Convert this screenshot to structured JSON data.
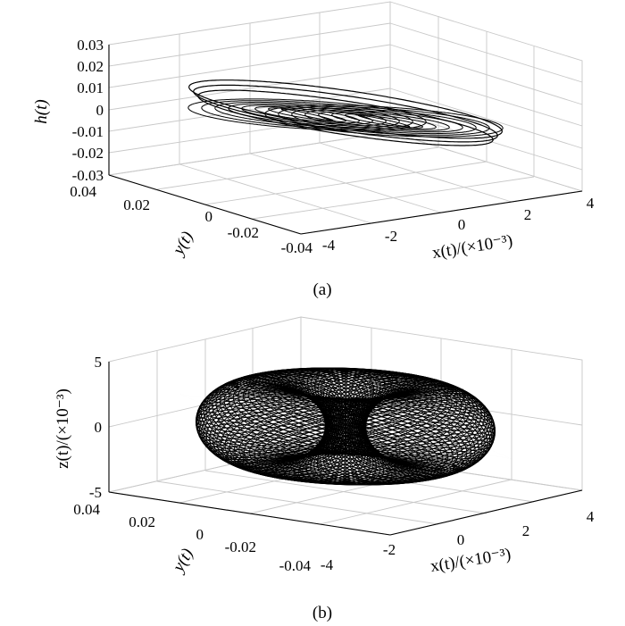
{
  "colors": {
    "trajectory": "#000000",
    "grid": "#c8c8c8",
    "background": "#ffffff"
  },
  "chart_data": [
    {
      "type": "line3d",
      "caption": "(a)",
      "xlabel": "x(t)/(×10⁻³)",
      "ylabel": "y(t)",
      "zlabel": "h(t)",
      "xlim": [
        -4,
        4
      ],
      "ylim": [
        -0.04,
        0.04
      ],
      "zlim": [
        -0.03,
        0.03
      ],
      "xticks": [
        "-4",
        "-2",
        "0",
        "2",
        "4"
      ],
      "yticks": [
        "0.04",
        "0.02",
        "0",
        "-0.02",
        "-0.04"
      ],
      "zticks": [
        "0.03",
        "0.02",
        "0.01",
        "0",
        "-0.01",
        "-0.02",
        "-0.03"
      ],
      "grid": true,
      "series": [
        {
          "x": [
            4.0,
            3.3,
            0.8,
            -1.6,
            -3.4,
            -4.0,
            -3.0,
            -0.5,
            2.0,
            3.6,
            4.0
          ],
          "y": [
            0.0,
            0.012,
            0.028,
            0.035,
            0.022,
            0.0,
            -0.02,
            -0.034,
            -0.03,
            -0.015,
            0.0
          ],
          "z": [
            0.0,
            0.006,
            0.012,
            0.014,
            0.009,
            0.0,
            -0.008,
            -0.014,
            -0.012,
            -0.006,
            0.0
          ]
        }
      ]
    },
    {
      "type": "line3d",
      "caption": "(b)",
      "xlabel": "x(t)/(×10⁻³)",
      "ylabel": "y(t)",
      "zlabel": "z(t)/(×10⁻³)",
      "xlim": [
        -4,
        4
      ],
      "ylim": [
        -0.04,
        0.04
      ],
      "zlim": [
        -5,
        5
      ],
      "xticks": [
        "-4",
        "-2",
        "0",
        "2",
        "4"
      ],
      "yticks": [
        "0.04",
        "0.02",
        "0",
        "-0.02",
        "-0.04"
      ],
      "zticks": [
        "5",
        "0",
        "-5"
      ],
      "grid": true,
      "series": [
        {
          "x": [
            4.0,
            2.8,
            0.0,
            -2.8,
            -4.0,
            -2.8,
            0.0,
            2.8,
            4.0
          ],
          "y": [
            0.0,
            0.028,
            0.04,
            0.028,
            0.0,
            -0.028,
            -0.04,
            -0.028,
            0.0
          ],
          "z": [
            0.0,
            2.5,
            3.3,
            2.5,
            0.0,
            -2.5,
            -3.3,
            -2.5,
            0.0
          ]
        }
      ]
    }
  ]
}
